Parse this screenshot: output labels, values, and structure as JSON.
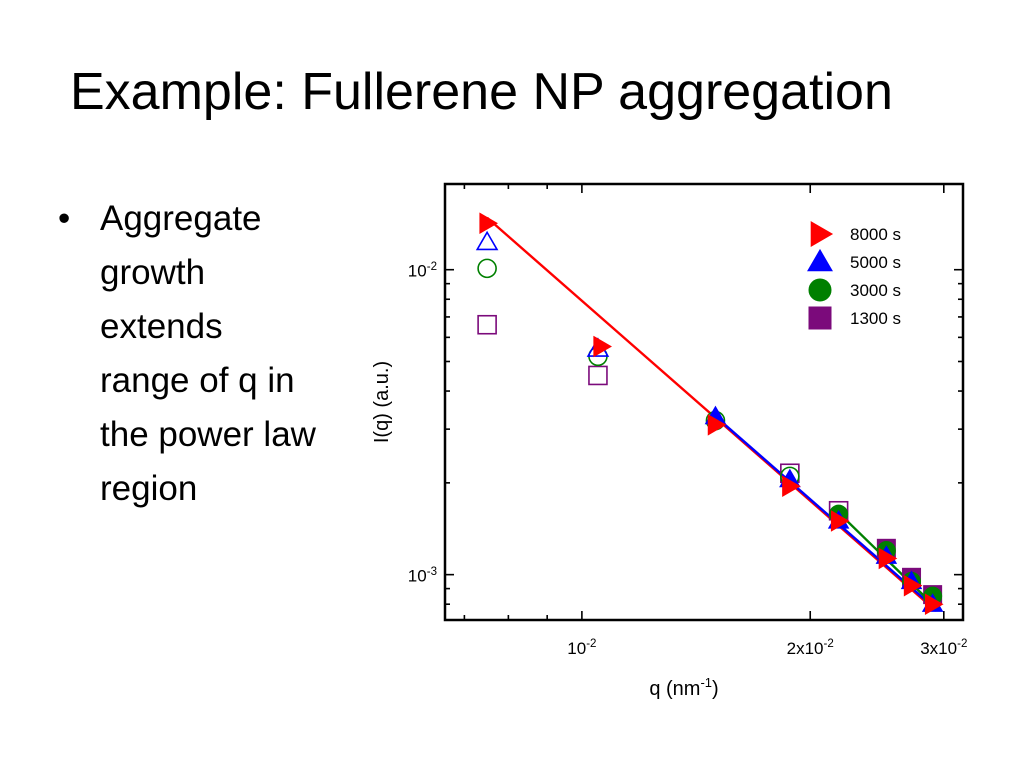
{
  "slide": {
    "title": "Example: Fullerene NP aggregation",
    "bullets": [
      "Aggregate growth extends range of q in the power law region"
    ]
  },
  "chart_data": {
    "type": "scatter",
    "xlabel": "q (nm",
    "xlabel_sup": "-1",
    "xlabel_end": ")",
    "ylabel": "I(q) (a.u.)",
    "xscale": "log",
    "yscale": "log",
    "xlim": [
      0.0066,
      0.0318
    ],
    "ylim": [
      0.00071,
      0.0191
    ],
    "x_ticks": [
      {
        "value": 0.01,
        "base": "10",
        "sup": "-2"
      },
      {
        "value": 0.02,
        "base": "2x10",
        "sup": "-2"
      },
      {
        "value": 0.03,
        "base": "3x10",
        "sup": "-2"
      }
    ],
    "y_ticks": [
      {
        "value": 0.01,
        "base": "10",
        "sup": "-2"
      },
      {
        "value": 0.001,
        "base": "10",
        "sup": "-3"
      }
    ],
    "legend_position": "top-right",
    "series": [
      {
        "name": "8000 s",
        "marker": "triangle-right",
        "color": "#ff0000",
        "x": [
          0.0075,
          0.0106,
          0.015,
          0.0188,
          0.0218,
          0.0252,
          0.0272,
          0.029
        ],
        "y": [
          0.0142,
          0.0056,
          0.0031,
          0.00195,
          0.0015,
          0.00113,
          0.00092,
          0.0008
        ],
        "fit": {
          "x": [
            0.0075,
            0.0293
          ],
          "y": [
            0.0148,
            0.00076
          ],
          "color": "#ff0000"
        }
      },
      {
        "name": "5000 s",
        "marker": "triangle-up",
        "color": "#0000ff",
        "x": [
          0.0075,
          0.0105,
          0.015,
          0.0188,
          0.0218,
          0.0252,
          0.0272,
          0.029
        ],
        "y": [
          0.0123,
          0.0055,
          0.0033,
          0.00205,
          0.0015,
          0.00115,
          0.00095,
          0.0008
        ],
        "filled_from": 2,
        "fit": {
          "x": [
            0.0148,
            0.0293
          ],
          "y": [
            0.0034,
            0.00077
          ],
          "color": "#0000ff"
        }
      },
      {
        "name": "3000 s",
        "marker": "circle",
        "color": "#008000",
        "x": [
          0.0075,
          0.0105,
          0.015,
          0.0188,
          0.0218,
          0.0252,
          0.0272,
          0.029
        ],
        "y": [
          0.0101,
          0.0052,
          0.0032,
          0.0021,
          0.00158,
          0.0012,
          0.00095,
          0.00085
        ],
        "filled_from": 4,
        "fit": {
          "x": [
            0.0215,
            0.0293
          ],
          "y": [
            0.00165,
            0.00078
          ],
          "color": "#008000"
        }
      },
      {
        "name": "1300 s",
        "marker": "square",
        "color": "#7b0a7b",
        "x": [
          0.0075,
          0.0105,
          0.0188,
          0.0218,
          0.0252,
          0.0272,
          0.029
        ],
        "y": [
          0.0066,
          0.0045,
          0.00215,
          0.00162,
          0.00122,
          0.00098,
          0.00086
        ],
        "filled_from": 4
      }
    ]
  }
}
